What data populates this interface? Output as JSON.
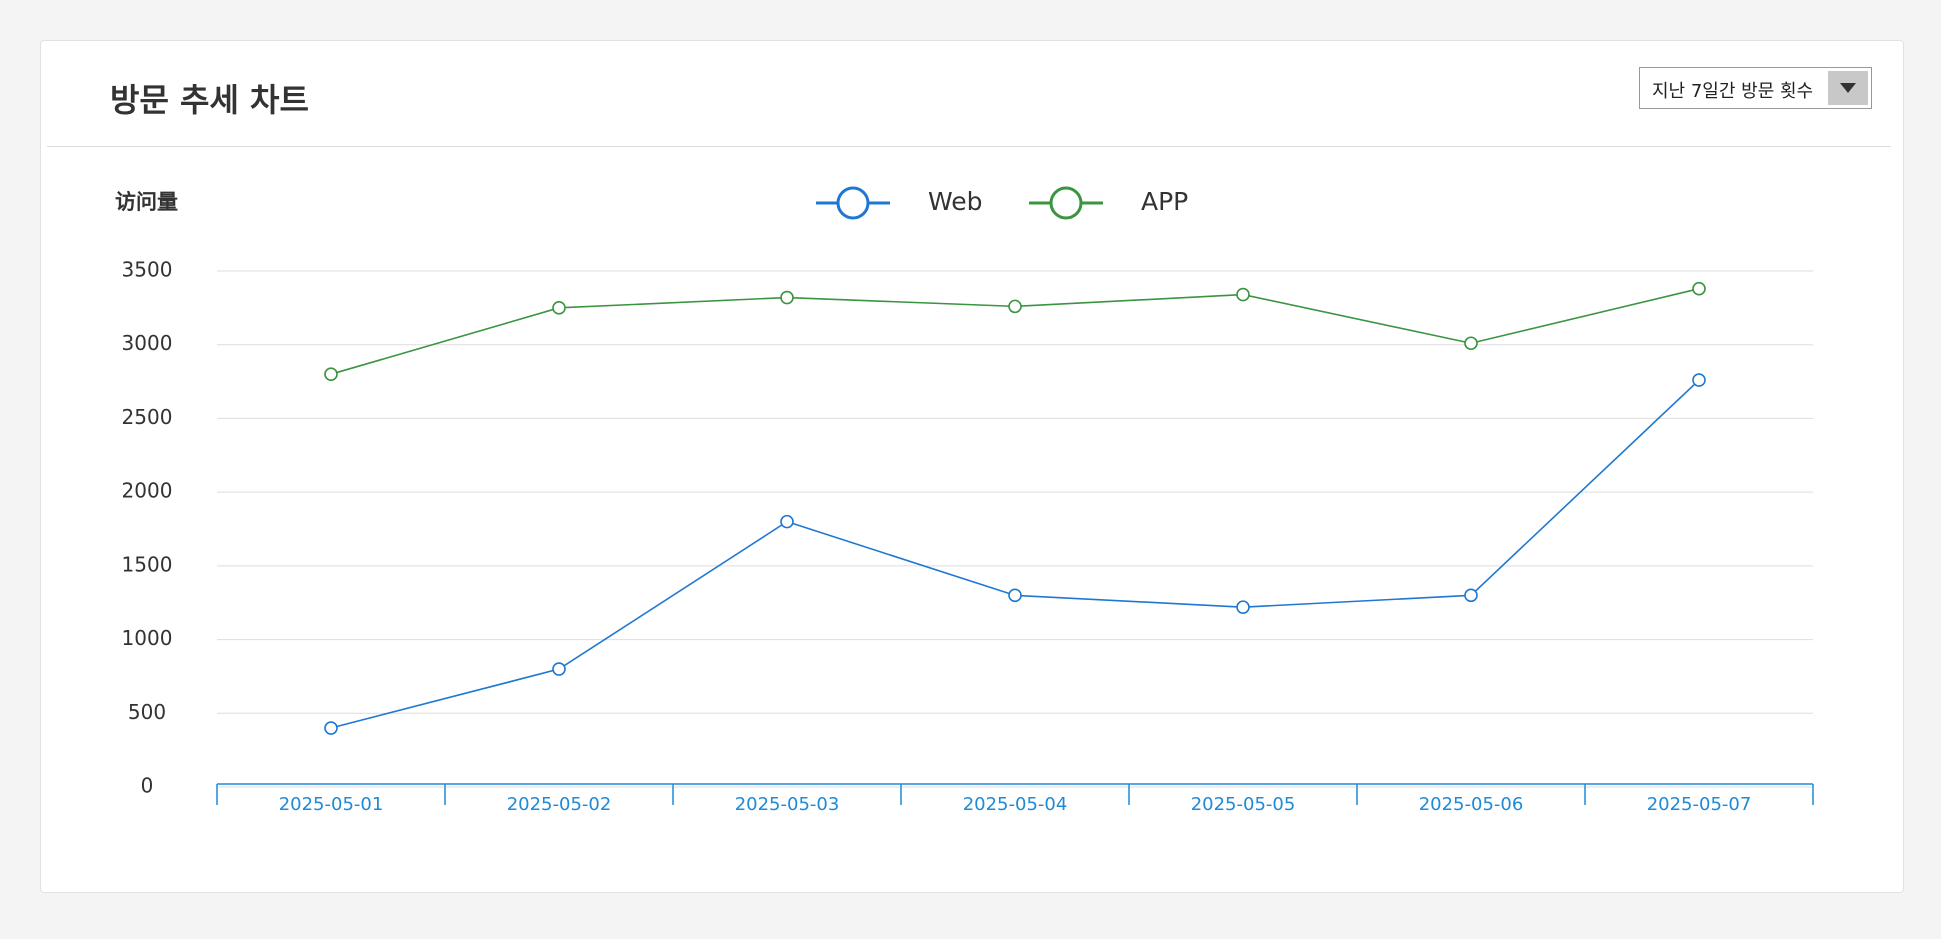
{
  "header": {
    "title": "방문 추세 차트",
    "dropdown": "지난 7일간 방문 횟수"
  },
  "chart_data": {
    "type": "line",
    "y_label": "访问量",
    "categories": [
      "2025-05-01",
      "2025-05-02",
      "2025-05-03",
      "2025-05-04",
      "2025-05-05",
      "2025-05-06",
      "2025-05-07"
    ],
    "series": [
      {
        "name": "Web",
        "color": "#1e78d2",
        "values": [
          400,
          800,
          1800,
          1300,
          1220,
          1300,
          2760
        ]
      },
      {
        "name": "APP",
        "color": "#3a9440",
        "values": [
          2800,
          3250,
          3320,
          3260,
          3340,
          3010,
          3380
        ]
      }
    ],
    "ylim": [
      0,
      3500
    ],
    "yticks": [
      0,
      500,
      1000,
      1500,
      2000,
      2500,
      3000,
      3500
    ],
    "grid": true,
    "legend": "top"
  }
}
